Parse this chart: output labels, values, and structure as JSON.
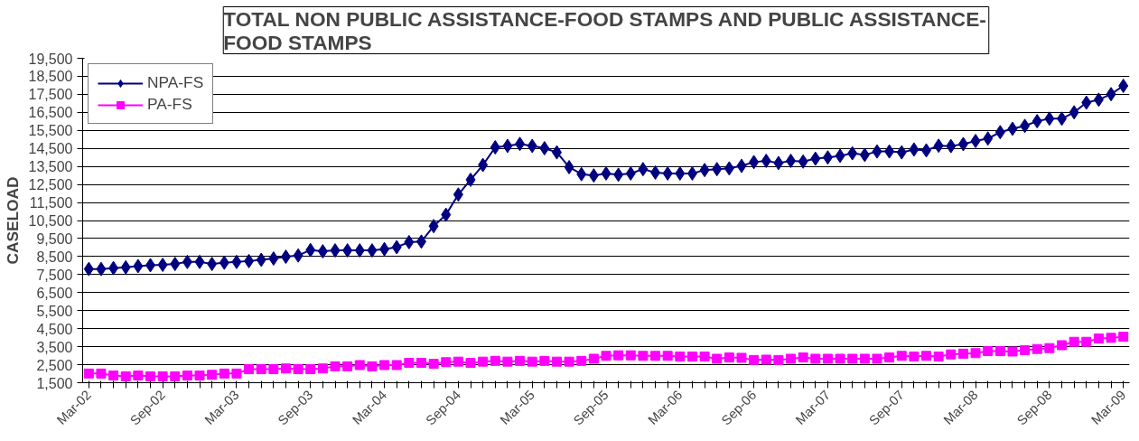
{
  "chart_data": {
    "type": "line",
    "title": "TOTAL NON PUBLIC ASSISTANCE-FOOD STAMPS AND PUBLIC ASSISTANCE-FOOD STAMPS",
    "ylabel": "CASELOAD",
    "categories": [
      "Mar-02",
      null,
      null,
      null,
      null,
      null,
      "Sep-02",
      null,
      null,
      null,
      null,
      null,
      "Mar-03",
      null,
      null,
      null,
      null,
      null,
      "Sep-03",
      null,
      null,
      null,
      null,
      null,
      "Mar-04",
      null,
      null,
      null,
      null,
      null,
      "Sep-04",
      null,
      null,
      null,
      null,
      null,
      "Mar-05",
      null,
      null,
      null,
      null,
      null,
      "Sep-05",
      null,
      null,
      null,
      null,
      null,
      "Mar-06",
      null,
      null,
      null,
      null,
      null,
      "Sep-06",
      null,
      null,
      null,
      null,
      null,
      "Mar-07",
      null,
      null,
      null,
      null,
      null,
      "Sep-07",
      null,
      null,
      null,
      null,
      null,
      "Mar-08",
      null,
      null,
      null,
      null,
      null,
      "Sep-08",
      null,
      null,
      null,
      null,
      null,
      "Mar-09"
    ],
    "ylim": [
      1500,
      19500
    ],
    "yticks": [
      {
        "value": 1500,
        "label": "1,500"
      },
      {
        "value": 2500,
        "label": "2,500"
      },
      {
        "value": 3500,
        "label": "3,500"
      },
      {
        "value": 4500,
        "label": "4,500"
      },
      {
        "value": 5500,
        "label": "5,500"
      },
      {
        "value": 6500,
        "label": "6,500"
      },
      {
        "value": 7500,
        "label": "7,500"
      },
      {
        "value": 8500,
        "label": "8,500"
      },
      {
        "value": 9500,
        "label": "9,500"
      },
      {
        "value": 10500,
        "label": "10,500"
      },
      {
        "value": 11500,
        "label": "11,500"
      },
      {
        "value": 12500,
        "label": "12,500"
      },
      {
        "value": 13500,
        "label": "13,500"
      },
      {
        "value": 14500,
        "label": "14,500"
      },
      {
        "value": 15500,
        "label": "15,500"
      },
      {
        "value": 16500,
        "label": "16,500"
      },
      {
        "value": 17500,
        "label": "17,500"
      },
      {
        "value": 18500,
        "label": "18,500"
      },
      {
        "value": 19500,
        "label": "19,500"
      }
    ],
    "grid": "y",
    "legend": "top left",
    "line_style": "solid",
    "series": [
      {
        "name": "NPA-FS",
        "color": "#000080",
        "marker": "diamond",
        "values": [
          7810,
          7810,
          7860,
          7900,
          7970,
          8020,
          8040,
          8090,
          8200,
          8200,
          8090,
          8160,
          8200,
          8250,
          8320,
          8390,
          8490,
          8560,
          8860,
          8790,
          8840,
          8840,
          8840,
          8840,
          8910,
          9020,
          9300,
          9330,
          10190,
          10820,
          11940,
          12760,
          13580,
          14560,
          14640,
          14750,
          14640,
          14510,
          14280,
          13460,
          13070,
          13000,
          13110,
          13040,
          13110,
          13350,
          13160,
          13110,
          13110,
          13110,
          13300,
          13350,
          13390,
          13530,
          13740,
          13810,
          13690,
          13810,
          13770,
          13930,
          14000,
          14090,
          14230,
          14140,
          14330,
          14330,
          14280,
          14440,
          14390,
          14650,
          14630,
          14740,
          14910,
          15050,
          15400,
          15590,
          15750,
          16010,
          16150,
          16150,
          16500,
          17040,
          17200,
          17510,
          17970
        ]
      },
      {
        "name": "PA-FS",
        "color": "#ff00ff",
        "marker": "square",
        "values": [
          2010,
          2010,
          1900,
          1850,
          1900,
          1850,
          1850,
          1850,
          1900,
          1900,
          1940,
          2010,
          2010,
          2250,
          2250,
          2250,
          2290,
          2250,
          2250,
          2290,
          2410,
          2410,
          2480,
          2410,
          2480,
          2480,
          2600,
          2600,
          2550,
          2640,
          2670,
          2600,
          2670,
          2710,
          2670,
          2710,
          2670,
          2710,
          2670,
          2670,
          2710,
          2830,
          2990,
          3020,
          3020,
          2990,
          2990,
          2990,
          2950,
          2950,
          2950,
          2830,
          2900,
          2880,
          2760,
          2780,
          2760,
          2830,
          2900,
          2830,
          2830,
          2830,
          2830,
          2830,
          2830,
          2900,
          2990,
          2950,
          2990,
          2950,
          3070,
          3110,
          3140,
          3250,
          3250,
          3230,
          3300,
          3370,
          3420,
          3580,
          3770,
          3770,
          3950,
          3990,
          4050
        ]
      }
    ]
  }
}
